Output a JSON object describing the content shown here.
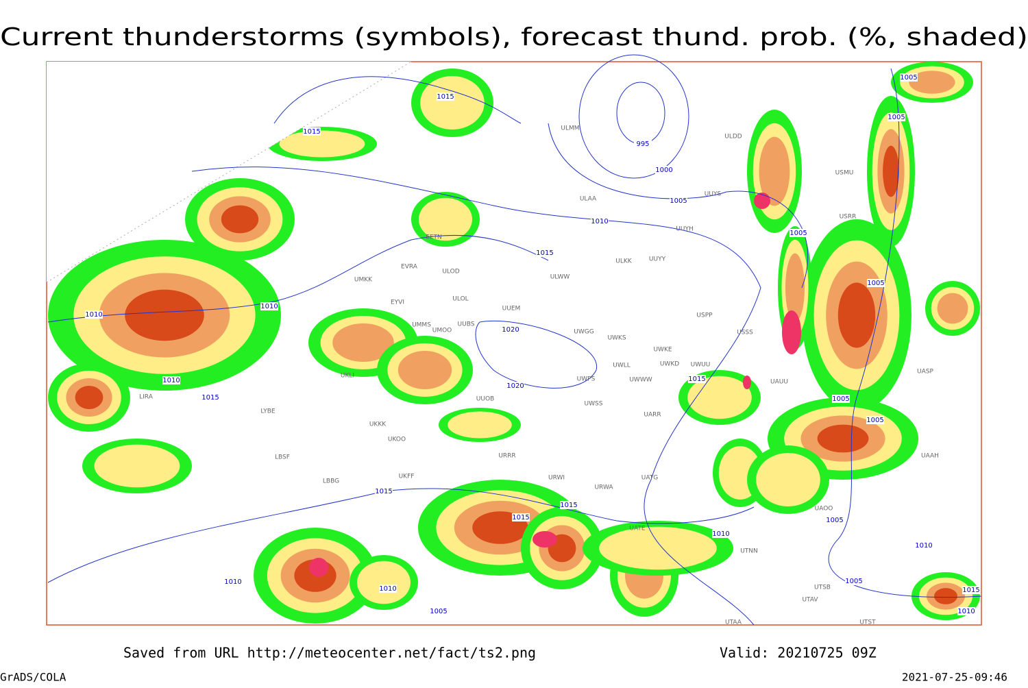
{
  "title": "Current thunderstorms (symbols), forecast thund. prob. (%, shaded)",
  "footer": {
    "saved": "Saved from URL  http://meteocenter.net/fact/ts2.png",
    "valid": "Valid: 20210725 09Z",
    "credit": "GrADS/COLA",
    "timestamp": "2021-07-25-09:46"
  },
  "isobar_labels": [
    1015,
    1015,
    995,
    1000,
    1005,
    1010,
    1015,
    1005,
    1005,
    1005,
    1005,
    1010,
    1010,
    1010,
    1015,
    1015,
    1005,
    1005,
    1015,
    1015,
    1015,
    1010,
    1005,
    1010,
    1010,
    1010,
    1005,
    1005,
    1015,
    1010,
    1020,
    1020
  ],
  "stations": [
    "ULMM",
    "ULDD",
    "USMU",
    "ULAA",
    "UUYS",
    "UUYH",
    "EETN",
    "EVRA",
    "ULOD",
    "ULKK",
    "UUYY",
    "ULWW",
    "UMKK",
    "ULOL",
    "UUEM",
    "EYVI",
    "UMMS",
    "UMOO",
    "UUBS",
    "UWGG",
    "UWKS",
    "USPP",
    "USSS",
    "UWKE",
    "UWKD",
    "UWUU",
    "UWLL",
    "UWWW",
    "UWPS",
    "UAUU",
    "UASP",
    "USRR",
    "UUOB",
    "UWSS",
    "UARR",
    "UKKK",
    "UKOO",
    "URRR",
    "LBSF",
    "LBBG",
    "UKFF",
    "URWI",
    "URWA",
    "UATG",
    "UATE",
    "UAOO",
    "UAAH",
    "UTNN",
    "UTAA",
    "UTSB",
    "UTAV",
    "UTST",
    "UKLI",
    "LYBE",
    "LIRA"
  ]
}
